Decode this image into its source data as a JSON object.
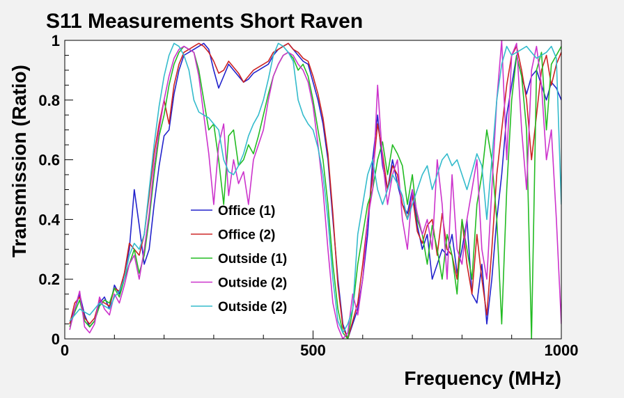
{
  "chart_data": {
    "type": "line",
    "title": "S11 Measurements Short Raven",
    "xlabel": "Frequency (MHz)",
    "ylabel": "Transmission (Ratio)",
    "xlim": [
      0,
      1000
    ],
    "ylim": [
      0,
      1
    ],
    "x_ticks": [
      0,
      500,
      1000
    ],
    "y_ticks": [
      0,
      0.2,
      0.4,
      0.6,
      0.8,
      1
    ],
    "x_tick_labels": [
      "0",
      "500",
      "1000"
    ],
    "y_tick_labels": [
      "0",
      "0.2",
      "0.4",
      "0.6",
      "0.8",
      "1"
    ],
    "grid": false,
    "legend_position": "center-left",
    "x": [
      10,
      20,
      30,
      40,
      50,
      60,
      70,
      80,
      90,
      100,
      110,
      120,
      130,
      140,
      150,
      160,
      170,
      180,
      190,
      200,
      210,
      220,
      230,
      240,
      250,
      260,
      270,
      280,
      290,
      300,
      310,
      320,
      330,
      340,
      350,
      360,
      370,
      380,
      390,
      400,
      410,
      420,
      430,
      440,
      450,
      460,
      470,
      480,
      490,
      500,
      510,
      520,
      530,
      540,
      550,
      560,
      570,
      580,
      590,
      600,
      610,
      620,
      630,
      640,
      650,
      660,
      670,
      680,
      690,
      700,
      710,
      720,
      730,
      740,
      750,
      760,
      770,
      780,
      790,
      800,
      810,
      820,
      830,
      840,
      850,
      860,
      870,
      880,
      890,
      900,
      910,
      920,
      930,
      940,
      950,
      960,
      970,
      980,
      990,
      1000
    ],
    "series": [
      {
        "name": "Office (1)",
        "color": "#2222cc",
        "values": [
          0.05,
          0.1,
          0.15,
          0.08,
          0.04,
          0.06,
          0.12,
          0.14,
          0.1,
          0.18,
          0.15,
          0.22,
          0.3,
          0.5,
          0.38,
          0.25,
          0.3,
          0.45,
          0.58,
          0.68,
          0.7,
          0.82,
          0.9,
          0.95,
          0.96,
          0.97,
          0.98,
          0.99,
          0.97,
          0.9,
          0.84,
          0.88,
          0.92,
          0.9,
          0.88,
          0.86,
          0.87,
          0.89,
          0.9,
          0.91,
          0.92,
          0.95,
          0.97,
          0.98,
          0.99,
          0.97,
          0.95,
          0.93,
          0.92,
          0.86,
          0.8,
          0.72,
          0.6,
          0.4,
          0.2,
          0.05,
          0.0,
          0.05,
          0.1,
          0.2,
          0.35,
          0.6,
          0.75,
          0.58,
          0.5,
          0.6,
          0.52,
          0.45,
          0.42,
          0.5,
          0.38,
          0.3,
          0.35,
          0.2,
          0.25,
          0.3,
          0.28,
          0.35,
          0.22,
          0.3,
          0.4,
          0.15,
          0.12,
          0.25,
          0.05,
          0.2,
          0.4,
          0.55,
          0.75,
          0.85,
          0.95,
          0.88,
          0.82,
          0.88,
          0.9,
          0.85,
          0.8,
          0.86,
          0.84,
          0.8
        ]
      },
      {
        "name": "Office (2)",
        "color": "#cc2222",
        "values": [
          0.05,
          0.12,
          0.14,
          0.07,
          0.05,
          0.07,
          0.13,
          0.12,
          0.11,
          0.17,
          0.16,
          0.22,
          0.32,
          0.3,
          0.28,
          0.35,
          0.48,
          0.62,
          0.72,
          0.8,
          0.72,
          0.85,
          0.92,
          0.96,
          0.97,
          0.98,
          0.99,
          0.98,
          0.96,
          0.93,
          0.89,
          0.9,
          0.93,
          0.91,
          0.89,
          0.86,
          0.88,
          0.9,
          0.91,
          0.92,
          0.93,
          0.96,
          0.97,
          0.98,
          0.99,
          0.97,
          0.96,
          0.94,
          0.93,
          0.88,
          0.82,
          0.74,
          0.62,
          0.42,
          0.18,
          0.04,
          0.0,
          0.06,
          0.12,
          0.25,
          0.4,
          0.55,
          0.72,
          0.62,
          0.5,
          0.58,
          0.55,
          0.45,
          0.4,
          0.48,
          0.36,
          0.32,
          0.38,
          0.4,
          0.28,
          0.42,
          0.3,
          0.28,
          0.2,
          0.4,
          0.25,
          0.15,
          0.35,
          0.2,
          0.08,
          0.3,
          0.55,
          0.7,
          0.85,
          0.95,
          0.98,
          0.9,
          0.8,
          0.6,
          0.75,
          0.9,
          0.95,
          0.85,
          0.92,
          0.96
        ]
      },
      {
        "name": "Outside (1)",
        "color": "#22bb22",
        "values": [
          0.04,
          0.09,
          0.13,
          0.06,
          0.04,
          0.06,
          0.11,
          0.13,
          0.12,
          0.17,
          0.14,
          0.2,
          0.25,
          0.3,
          0.22,
          0.28,
          0.4,
          0.55,
          0.68,
          0.75,
          0.85,
          0.92,
          0.96,
          0.98,
          0.97,
          0.96,
          0.9,
          0.8,
          0.7,
          0.72,
          0.6,
          0.45,
          0.68,
          0.7,
          0.58,
          0.6,
          0.65,
          0.62,
          0.68,
          0.75,
          0.82,
          0.88,
          0.92,
          0.95,
          0.96,
          0.94,
          0.9,
          0.92,
          0.88,
          0.8,
          0.7,
          0.6,
          0.45,
          0.25,
          0.1,
          0.02,
          0.0,
          0.1,
          0.25,
          0.35,
          0.45,
          0.5,
          0.6,
          0.66,
          0.55,
          0.65,
          0.62,
          0.58,
          0.45,
          0.55,
          0.4,
          0.35,
          0.25,
          0.38,
          0.3,
          0.2,
          0.35,
          0.28,
          0.15,
          0.4,
          0.3,
          0.2,
          0.45,
          0.55,
          0.7,
          0.6,
          0.4,
          0.05,
          0.5,
          0.8,
          0.95,
          0.88,
          0.7,
          0.0,
          0.9,
          0.96,
          0.7,
          0.92,
          0.95,
          0.98
        ]
      },
      {
        "name": "Outside (2)",
        "color": "#cc33cc",
        "values": [
          0.03,
          0.1,
          0.16,
          0.04,
          0.02,
          0.05,
          0.14,
          0.1,
          0.08,
          0.15,
          0.12,
          0.18,
          0.25,
          0.28,
          0.2,
          0.3,
          0.42,
          0.58,
          0.7,
          0.8,
          0.88,
          0.94,
          0.97,
          0.98,
          0.97,
          0.96,
          0.88,
          0.75,
          0.62,
          0.45,
          0.65,
          0.72,
          0.48,
          0.6,
          0.52,
          0.56,
          0.45,
          0.6,
          0.65,
          0.7,
          0.8,
          0.88,
          0.92,
          0.95,
          0.96,
          0.95,
          0.92,
          0.9,
          0.86,
          0.78,
          0.65,
          0.5,
          0.3,
          0.12,
          0.04,
          0.0,
          0.02,
          0.15,
          0.08,
          0.2,
          0.4,
          0.5,
          0.85,
          0.6,
          0.45,
          0.55,
          0.6,
          0.4,
          0.3,
          0.5,
          0.42,
          0.35,
          0.4,
          0.3,
          0.6,
          0.45,
          0.2,
          0.55,
          0.3,
          0.25,
          0.4,
          0.5,
          0.6,
          0.3,
          0.2,
          0.5,
          0.8,
          1.0,
          0.6,
          0.95,
          0.99,
          0.7,
          0.5,
          0.9,
          0.98,
          0.85,
          0.6,
          0.7,
          0.4,
          0.05
        ]
      },
      {
        "name": "Outside (2)",
        "color": "#33bbcc",
        "values": [
          0.06,
          0.08,
          0.1,
          0.09,
          0.08,
          0.1,
          0.12,
          0.11,
          0.1,
          0.14,
          0.16,
          0.2,
          0.28,
          0.32,
          0.3,
          0.35,
          0.5,
          0.65,
          0.78,
          0.88,
          0.95,
          0.99,
          0.98,
          0.95,
          0.9,
          0.8,
          0.76,
          0.75,
          0.74,
          0.72,
          0.7,
          0.6,
          0.56,
          0.55,
          0.58,
          0.62,
          0.68,
          0.72,
          0.75,
          0.8,
          0.87,
          0.95,
          0.99,
          0.98,
          0.96,
          0.93,
          0.8,
          0.75,
          0.72,
          0.7,
          0.64,
          0.55,
          0.4,
          0.2,
          0.06,
          0.02,
          0.05,
          0.1,
          0.35,
          0.45,
          0.55,
          0.6,
          0.5,
          0.45,
          0.5,
          0.55,
          0.52,
          0.48,
          0.4,
          0.45,
          0.5,
          0.55,
          0.58,
          0.5,
          0.55,
          0.6,
          0.62,
          0.58,
          0.6,
          0.55,
          0.5,
          0.56,
          0.62,
          0.58,
          0.4,
          0.6,
          0.8,
          0.92,
          0.98,
          0.95,
          0.96,
          0.97,
          0.98,
          0.96,
          0.94,
          0.95,
          0.96,
          0.98,
          0.94,
          0.45
        ]
      }
    ]
  }
}
